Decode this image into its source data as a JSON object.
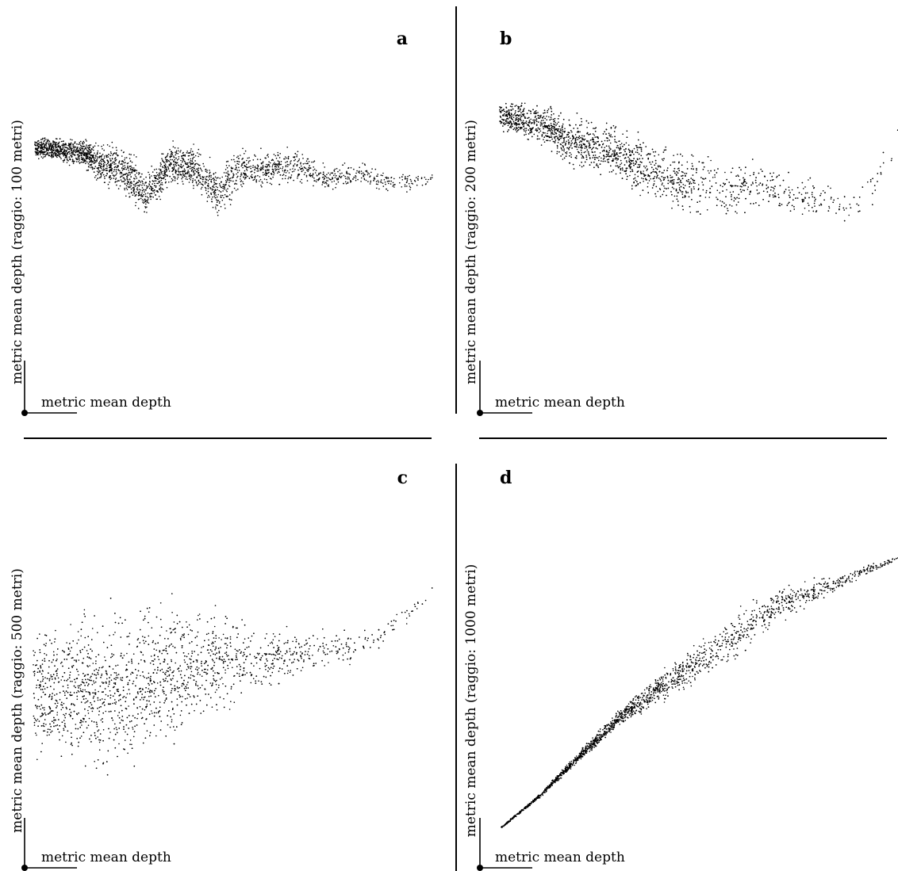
{
  "chart_data": [
    {
      "type": "scatter",
      "panel": "a",
      "ylabel": "metric mean depth (raggio: 100 metri)",
      "xlabel": "metric mean depth",
      "axis_ticks": "none",
      "grid": false,
      "marker_color": "#000000",
      "shape": [
        {
          "x": 0.0,
          "center": 0.8,
          "spread": 0.05,
          "density": 1.0
        },
        {
          "x": 0.06,
          "center": 0.79,
          "spread": 0.07,
          "density": 1.0
        },
        {
          "x": 0.12,
          "center": 0.77,
          "spread": 0.08,
          "density": 0.95
        },
        {
          "x": 0.18,
          "center": 0.72,
          "spread": 0.12,
          "density": 0.9
        },
        {
          "x": 0.24,
          "center": 0.68,
          "spread": 0.14,
          "density": 0.85
        },
        {
          "x": 0.28,
          "center": 0.58,
          "spread": 0.13,
          "density": 0.6
        },
        {
          "x": 0.34,
          "center": 0.72,
          "spread": 0.12,
          "density": 0.8
        },
        {
          "x": 0.4,
          "center": 0.71,
          "spread": 0.12,
          "density": 0.75
        },
        {
          "x": 0.46,
          "center": 0.6,
          "spread": 0.14,
          "density": 0.6
        },
        {
          "x": 0.52,
          "center": 0.7,
          "spread": 0.12,
          "density": 0.6
        },
        {
          "x": 0.58,
          "center": 0.7,
          "spread": 0.1,
          "density": 0.45
        },
        {
          "x": 0.66,
          "center": 0.72,
          "spread": 0.1,
          "density": 0.35
        },
        {
          "x": 0.74,
          "center": 0.66,
          "spread": 0.07,
          "density": 0.25
        },
        {
          "x": 0.82,
          "center": 0.68,
          "spread": 0.07,
          "density": 0.2
        },
        {
          "x": 0.9,
          "center": 0.64,
          "spread": 0.06,
          "density": 0.15
        },
        {
          "x": 1.0,
          "center": 0.66,
          "spread": 0.05,
          "density": 0.1
        }
      ]
    },
    {
      "type": "scatter",
      "panel": "b",
      "ylabel": "metric mean depth (raggio: 200 metri)",
      "xlabel": "metric mean depth",
      "axis_ticks": "none",
      "grid": false,
      "marker_color": "#000000",
      "shape": [
        {
          "x": 0.0,
          "center": 0.78,
          "spread": 0.06,
          "density": 1.0
        },
        {
          "x": 0.06,
          "center": 0.76,
          "spread": 0.09,
          "density": 1.0
        },
        {
          "x": 0.12,
          "center": 0.73,
          "spread": 0.1,
          "density": 0.95
        },
        {
          "x": 0.18,
          "center": 0.68,
          "spread": 0.12,
          "density": 0.9
        },
        {
          "x": 0.26,
          "center": 0.66,
          "spread": 0.13,
          "density": 0.85
        },
        {
          "x": 0.34,
          "center": 0.6,
          "spread": 0.13,
          "density": 0.75
        },
        {
          "x": 0.42,
          "center": 0.55,
          "spread": 0.14,
          "density": 0.6
        },
        {
          "x": 0.5,
          "center": 0.52,
          "spread": 0.14,
          "density": 0.45
        },
        {
          "x": 0.58,
          "center": 0.5,
          "spread": 0.13,
          "density": 0.35
        },
        {
          "x": 0.66,
          "center": 0.52,
          "spread": 0.11,
          "density": 0.25
        },
        {
          "x": 0.74,
          "center": 0.48,
          "spread": 0.1,
          "density": 0.2
        },
        {
          "x": 0.82,
          "center": 0.45,
          "spread": 0.09,
          "density": 0.15
        },
        {
          "x": 0.9,
          "center": 0.44,
          "spread": 0.08,
          "density": 0.12
        },
        {
          "x": 0.96,
          "center": 0.58,
          "spread": 0.1,
          "density": 0.1
        },
        {
          "x": 1.0,
          "center": 0.7,
          "spread": 0.08,
          "density": 0.05
        }
      ]
    },
    {
      "type": "scatter",
      "panel": "c",
      "ylabel": "metric mean depth (raggio: 500 metri)",
      "xlabel": "metric mean depth",
      "axis_ticks": "none",
      "grid": false,
      "marker_color": "#000000",
      "shape": [
        {
          "x": 0.0,
          "center": 0.52,
          "spread": 0.28,
          "density": 1.0
        },
        {
          "x": 0.08,
          "center": 0.5,
          "spread": 0.34,
          "density": 1.0
        },
        {
          "x": 0.16,
          "center": 0.5,
          "spread": 0.38,
          "density": 0.9
        },
        {
          "x": 0.24,
          "center": 0.52,
          "spread": 0.38,
          "density": 0.85
        },
        {
          "x": 0.32,
          "center": 0.56,
          "spread": 0.34,
          "density": 0.8
        },
        {
          "x": 0.4,
          "center": 0.6,
          "spread": 0.28,
          "density": 0.7
        },
        {
          "x": 0.48,
          "center": 0.62,
          "spread": 0.22,
          "density": 0.6
        },
        {
          "x": 0.56,
          "center": 0.62,
          "spread": 0.16,
          "density": 0.45
        },
        {
          "x": 0.64,
          "center": 0.64,
          "spread": 0.12,
          "density": 0.3
        },
        {
          "x": 0.72,
          "center": 0.66,
          "spread": 0.1,
          "density": 0.2
        },
        {
          "x": 0.8,
          "center": 0.66,
          "spread": 0.08,
          "density": 0.15
        },
        {
          "x": 0.88,
          "center": 0.72,
          "spread": 0.06,
          "density": 0.12
        },
        {
          "x": 1.0,
          "center": 0.88,
          "spread": 0.03,
          "density": 0.08
        }
      ]
    },
    {
      "type": "scatter",
      "panel": "d",
      "ylabel": "metric mean depth (raggio: 1000 metri)",
      "xlabel": "metric mean depth",
      "axis_ticks": "none",
      "grid": false,
      "marker_color": "#000000",
      "shape": [
        {
          "x": 0.0,
          "center": 0.0,
          "spread": 0.004,
          "density": 0.5
        },
        {
          "x": 0.1,
          "center": 0.12,
          "spread": 0.01,
          "density": 0.8
        },
        {
          "x": 0.2,
          "center": 0.27,
          "spread": 0.025,
          "density": 1.0
        },
        {
          "x": 0.3,
          "center": 0.41,
          "spread": 0.04,
          "density": 1.0
        },
        {
          "x": 0.4,
          "center": 0.52,
          "spread": 0.07,
          "density": 0.8
        },
        {
          "x": 0.5,
          "center": 0.62,
          "spread": 0.1,
          "density": 0.6
        },
        {
          "x": 0.6,
          "center": 0.72,
          "spread": 0.11,
          "density": 0.5
        },
        {
          "x": 0.7,
          "center": 0.83,
          "spread": 0.08,
          "density": 0.5
        },
        {
          "x": 0.8,
          "center": 0.88,
          "spread": 0.05,
          "density": 0.4
        },
        {
          "x": 0.9,
          "center": 0.94,
          "spread": 0.03,
          "density": 0.3
        },
        {
          "x": 1.0,
          "center": 1.0,
          "spread": 0.01,
          "density": 0.2
        }
      ]
    }
  ],
  "panels": {
    "a": {
      "letter": "a",
      "ylabel": "metric mean depth (raggio: 100 metri)",
      "xlabel": "metric mean depth"
    },
    "b": {
      "letter": "b",
      "ylabel": "metric mean depth (raggio: 200 metri)",
      "xlabel": "metric mean depth"
    },
    "c": {
      "letter": "c",
      "ylabel": "metric mean depth (raggio: 500 metri)",
      "xlabel": "metric mean depth"
    },
    "d": {
      "letter": "d",
      "ylabel": "metric mean depth (raggio: 1000 metri)",
      "xlabel": "metric mean depth"
    }
  }
}
